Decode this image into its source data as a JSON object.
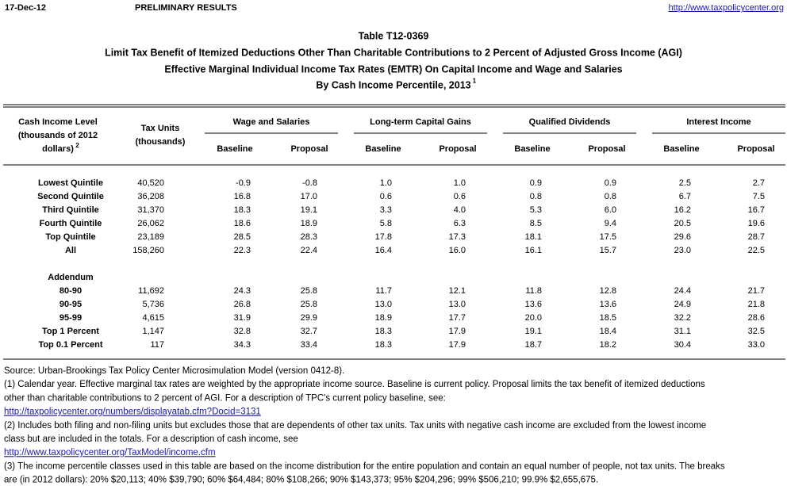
{
  "header": {
    "date": "17-Dec-12",
    "status": "PRELIMINARY RESULTS",
    "url": "http://www.taxpolicycenter.org"
  },
  "title": {
    "lines": [
      "Table T12-0369",
      "Limit Tax Benefit of Itemized Deductions Other Than Charitable Contributions to 2 Percent of Adjusted Gross Income (AGI)",
      "Effective Marginal Individual Income Tax Rates (EMTR) On Capital Income and Wage and Salaries",
      "By Cash Income Percentile, 2013"
    ],
    "sup": "1"
  },
  "table": {
    "label_header": {
      "lines": [
        "Cash Income Level",
        "(thousands of 2012",
        "dollars)"
      ],
      "sup": "2"
    },
    "units_header": [
      "Tax Units",
      "(thousands)"
    ],
    "groups": [
      {
        "name": "Wage and Salaries",
        "sub": [
          "Baseline",
          "Proposal"
        ]
      },
      {
        "name": "Long-term Capital Gains",
        "sub": [
          "Baseline",
          "Proposal"
        ]
      },
      {
        "name": "Qualified Dividends",
        "sub": [
          "Baseline",
          "Proposal"
        ]
      },
      {
        "name": "Interest Income",
        "sub": [
          "Baseline",
          "Proposal"
        ]
      }
    ],
    "rows": [
      [
        "Lowest Quintile",
        "40,520",
        "-0.9",
        "-0.8",
        "1.0",
        "1.0",
        "0.9",
        "0.9",
        "2.5",
        "2.7"
      ],
      [
        "Second Quintile",
        "36,208",
        "16.8",
        "17.0",
        "0.6",
        "0.6",
        "0.8",
        "0.8",
        "6.7",
        "7.5"
      ],
      [
        "Third Quintile",
        "31,370",
        "18.3",
        "19.1",
        "3.3",
        "4.0",
        "5.3",
        "6.0",
        "16.2",
        "16.7"
      ],
      [
        "Fourth Quintile",
        "26,062",
        "18.6",
        "18.9",
        "5.8",
        "6.3",
        "8.5",
        "9.4",
        "20.5",
        "19.6"
      ],
      [
        "Top Quintile",
        "23,189",
        "28.5",
        "28.3",
        "17.8",
        "17.3",
        "18.1",
        "17.5",
        "29.6",
        "28.7"
      ],
      [
        "All",
        "158,260",
        "22.3",
        "22.4",
        "16.4",
        "16.0",
        "16.1",
        "15.7",
        "23.0",
        "22.5"
      ]
    ],
    "addendum_title": "Addendum",
    "addendum_rows": [
      [
        "80-90",
        "11,692",
        "24.3",
        "25.8",
        "11.7",
        "12.1",
        "11.8",
        "12.8",
        "24.4",
        "21.7"
      ],
      [
        "90-95",
        "5,736",
        "26.8",
        "25.8",
        "13.0",
        "13.0",
        "13.6",
        "13.6",
        "24.9",
        "21.8"
      ],
      [
        "95-99",
        "4,615",
        "31.9",
        "29.9",
        "18.9",
        "17.7",
        "20.0",
        "18.5",
        "32.2",
        "28.6"
      ],
      [
        "Top 1 Percent",
        "1,147",
        "32.8",
        "32.7",
        "18.3",
        "17.9",
        "19.1",
        "18.4",
        "31.1",
        "32.5"
      ],
      [
        "Top 0.1 Percent",
        "117",
        "34.3",
        "33.4",
        "18.3",
        "17.9",
        "18.7",
        "18.2",
        "30.4",
        "33.0"
      ]
    ]
  },
  "footnotes": {
    "source": "Source: Urban-Brookings Tax Policy Center Microsimulation Model (version 0412-8).",
    "notes": [
      {
        "lines": [
          "(1) Calendar year. Effective marginal tax rates are weighted by the appropriate income source. Baseline is current policy. Proposal limits the tax benefit of itemized deductions",
          "other than charitable contributions to 2 percent of AGI. For a description of TPC's current policy baseline, see:"
        ],
        "link": "http://taxpolicycenter.org/numbers/displayatab.cfm?Docid=3131"
      },
      {
        "lines": [
          "(2) Includes both filing and non-filing units but excludes those that are dependents of other tax units. Tax units with negative cash income are excluded from the lowest income",
          "class but are included in the totals. For a description of cash income, see"
        ],
        "link": "http://www.taxpolicycenter.org/TaxModel/income.cfm"
      },
      {
        "lines": [
          "(3) The income percentile classes used in this table are based on the income distribution for the entire population and contain an equal number of people, not tax units. The breaks",
          "are (in 2012 dollars): 20% $20,113; 40% $39,790; 60% $64,484; 80% $108,266; 90% $143,373; 95% $204,296; 99% $506,210; 99.9% $2,655,675."
        ]
      }
    ]
  }
}
